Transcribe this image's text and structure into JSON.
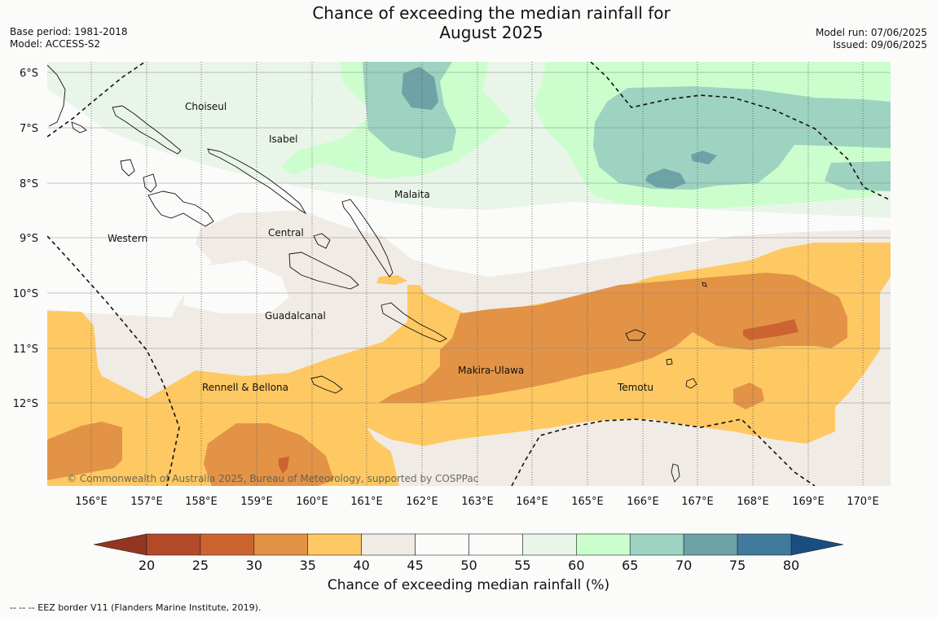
{
  "header": {
    "title_line1": "Chance of exceeding the median rainfall for",
    "title_line2": "August 2025",
    "base_period": "Base period: 1981-2018",
    "model": "Model: ACCESS-S2",
    "model_run": "Model run: 07/06/2025",
    "issued": "Issued: 09/06/2025"
  },
  "map": {
    "lat_labels": [
      "6°S",
      "7°S",
      "8°S",
      "9°S",
      "10°S",
      "11°S",
      "12°S"
    ],
    "lon_labels": [
      "156°E",
      "157°E",
      "158°E",
      "159°E",
      "160°E",
      "161°E",
      "162°E",
      "163°E",
      "164°E",
      "165°E",
      "166°E",
      "167°E",
      "168°E",
      "169°E",
      "170°E"
    ],
    "regions": [
      {
        "name": "Choiseul"
      },
      {
        "name": "Isabel"
      },
      {
        "name": "Malaita"
      },
      {
        "name": "Western"
      },
      {
        "name": "Central"
      },
      {
        "name": "Guadalcanal"
      },
      {
        "name": "Makira-Ulawa"
      },
      {
        "name": "Rennell & Bellona"
      },
      {
        "name": "Temotu"
      }
    ],
    "copyright": "© Commonwealth of Australia 2025, Bureau of Meteorology, supported by COSPPac"
  },
  "colorbar": {
    "ticks": [
      "20",
      "25",
      "30",
      "35",
      "40",
      "45",
      "50",
      "55",
      "60",
      "65",
      "70",
      "75",
      "80"
    ],
    "colors": [
      "#b24a2a",
      "#cc6432",
      "#e29346",
      "#fec962",
      "#f1ebe6",
      "#fbfcfa",
      "#fbfcfa",
      "#eaf5ea",
      "#ccfecd",
      "#9dd3c0",
      "#6da2a6",
      "#417a9d"
    ],
    "low_extend_color": "#933521",
    "high_extend_color": "#194e80",
    "label": "Chance of exceeding median rainfall (%)"
  },
  "legend_note": "--  --  -- EEZ border V11 (Flanders Marine Institute, 2019)."
}
